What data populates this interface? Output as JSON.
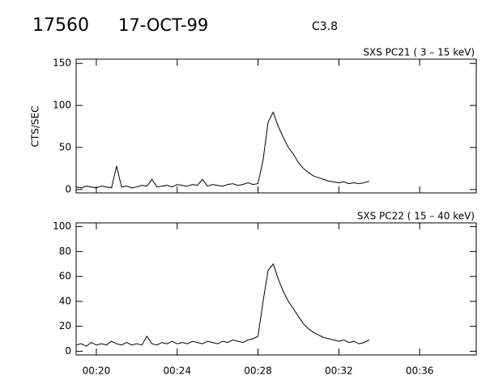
{
  "header": {
    "id": "17560",
    "date": "17-OCT-99",
    "class": "C3.8"
  },
  "chart_data": [
    {
      "type": "line",
      "title": "SXS PC21  (  3 – 15 keV)",
      "y_label": "CTS/SEC",
      "x": [
        19,
        19.25,
        19.5,
        19.75,
        20,
        20.25,
        20.5,
        20.75,
        21,
        21.25,
        21.5,
        21.75,
        22,
        22.25,
        22.5,
        22.75,
        23,
        23.25,
        23.5,
        23.75,
        24,
        24.25,
        24.5,
        24.75,
        25,
        25.25,
        25.5,
        25.75,
        26,
        26.25,
        26.5,
        26.75,
        27,
        27.25,
        27.5,
        27.75,
        28,
        28.25,
        28.5,
        28.75,
        29,
        29.25,
        29.5,
        29.75,
        30,
        30.25,
        30.5,
        30.75,
        31,
        31.25,
        31.5,
        31.75,
        32,
        32.25,
        32.5,
        32.75,
        33,
        33.25,
        33.5
      ],
      "series": [
        {
          "name": "PC21",
          "color": "#000000",
          "values": [
            3,
            2,
            4,
            3,
            2,
            4,
            3,
            2,
            28,
            3,
            4,
            2,
            3,
            5,
            4,
            12,
            3,
            4,
            5,
            3,
            6,
            5,
            4,
            6,
            5,
            12,
            4,
            6,
            5,
            4,
            6,
            7,
            5,
            6,
            8,
            6,
            7,
            35,
            80,
            92,
            75,
            62,
            50,
            42,
            32,
            25,
            20,
            16,
            14,
            12,
            10,
            9,
            8,
            9,
            7,
            8,
            7,
            8,
            10
          ]
        }
      ],
      "xlim": [
        19,
        38.8
      ],
      "ylim": [
        -4,
        155
      ],
      "yticks": [
        0,
        50,
        100,
        150
      ]
    },
    {
      "type": "line",
      "title": "SXS PC22  ( 15 – 40 keV)",
      "x": [
        19,
        19.25,
        19.5,
        19.75,
        20,
        20.25,
        20.5,
        20.75,
        21,
        21.25,
        21.5,
        21.75,
        22,
        22.25,
        22.5,
        22.75,
        23,
        23.25,
        23.5,
        23.75,
        24,
        24.25,
        24.5,
        24.75,
        25,
        25.25,
        25.5,
        25.75,
        26,
        26.25,
        26.5,
        26.75,
        27,
        27.25,
        27.5,
        27.75,
        28,
        28.25,
        28.5,
        28.75,
        29,
        29.25,
        29.5,
        29.75,
        30,
        30.25,
        30.5,
        30.75,
        31,
        31.25,
        31.5,
        31.75,
        32,
        32.25,
        32.5,
        32.75,
        33,
        33.25,
        33.5
      ],
      "series": [
        {
          "name": "PC22",
          "color": "#000000",
          "values": [
            5,
            6,
            4,
            7,
            5,
            6,
            5,
            8,
            6,
            5,
            7,
            5,
            6,
            5,
            12,
            6,
            5,
            7,
            6,
            8,
            6,
            7,
            6,
            8,
            7,
            6,
            8,
            7,
            6,
            8,
            7,
            9,
            8,
            7,
            9,
            10,
            12,
            40,
            65,
            70,
            58,
            48,
            40,
            34,
            28,
            22,
            18,
            15,
            13,
            11,
            10,
            9,
            8,
            9,
            7,
            8,
            6,
            7,
            9
          ]
        }
      ],
      "xlim": [
        19,
        38.8
      ],
      "ylim": [
        -3,
        103
      ],
      "yticks": [
        0,
        20,
        40,
        60,
        80,
        100
      ],
      "xticks": [
        {
          "value": 20,
          "label": "00:20"
        },
        {
          "value": 24,
          "label": "00:24"
        },
        {
          "value": 28,
          "label": "00:28"
        },
        {
          "value": 32,
          "label": "00:32"
        },
        {
          "value": 36,
          "label": "00:36"
        }
      ]
    }
  ]
}
